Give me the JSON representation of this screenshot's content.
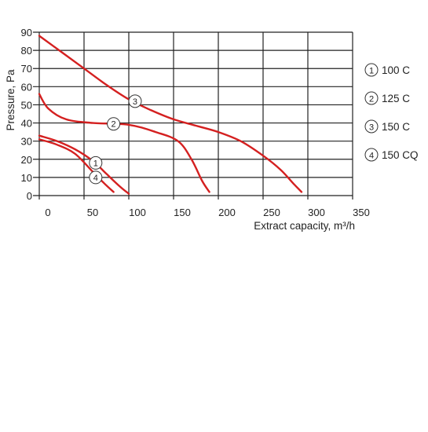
{
  "chart_data": {
    "type": "line",
    "title": "",
    "xlabel": "Extract capacity, m³/h",
    "ylabel": "Pressure, Pa",
    "xlim": [
      0,
      350
    ],
    "ylim": [
      0,
      90
    ],
    "xticks": [
      0,
      50,
      100,
      150,
      200,
      250,
      300,
      350
    ],
    "yticks": [
      0,
      10,
      20,
      30,
      40,
      50,
      60,
      70,
      80,
      90
    ],
    "grid": true,
    "legend_position": "right",
    "line_color": "#d42020",
    "series": [
      {
        "name": "100 C",
        "marker": "1",
        "marker_point": [
          63,
          18
        ],
        "points": [
          [
            0,
            33
          ],
          [
            20,
            30
          ],
          [
            40,
            25.5
          ],
          [
            60,
            19
          ],
          [
            75,
            12
          ],
          [
            90,
            5
          ],
          [
            100,
            1
          ]
        ]
      },
      {
        "name": "125 C",
        "marker": "2",
        "marker_point": [
          83,
          39.5
        ],
        "points": [
          [
            0,
            56
          ],
          [
            10,
            48
          ],
          [
            30,
            42
          ],
          [
            60,
            40
          ],
          [
            100,
            39
          ],
          [
            130,
            35
          ],
          [
            155,
            30
          ],
          [
            170,
            20
          ],
          [
            182,
            8
          ],
          [
            190,
            2
          ]
        ]
      },
      {
        "name": "150 C",
        "marker": "3",
        "marker_point": [
          107,
          52
        ],
        "points": [
          [
            0,
            88
          ],
          [
            25,
            79
          ],
          [
            50,
            70
          ],
          [
            75,
            61
          ],
          [
            100,
            53
          ],
          [
            125,
            47
          ],
          [
            150,
            42
          ],
          [
            175,
            38.5
          ],
          [
            200,
            35
          ],
          [
            225,
            30
          ],
          [
            250,
            22
          ],
          [
            270,
            14
          ],
          [
            285,
            6
          ],
          [
            293,
            2
          ]
        ]
      },
      {
        "name": "150 CQ",
        "marker": "4",
        "marker_point": [
          63,
          10
        ],
        "points": [
          [
            0,
            31
          ],
          [
            20,
            28
          ],
          [
            40,
            23
          ],
          [
            60,
            13
          ],
          [
            72,
            7
          ],
          [
            83,
            2
          ]
        ]
      }
    ],
    "legend": [
      {
        "marker": "1",
        "label": "100 C"
      },
      {
        "marker": "2",
        "label": "125 C"
      },
      {
        "marker": "3",
        "label": "150 C"
      },
      {
        "marker": "4",
        "label": "150 CQ"
      }
    ]
  }
}
